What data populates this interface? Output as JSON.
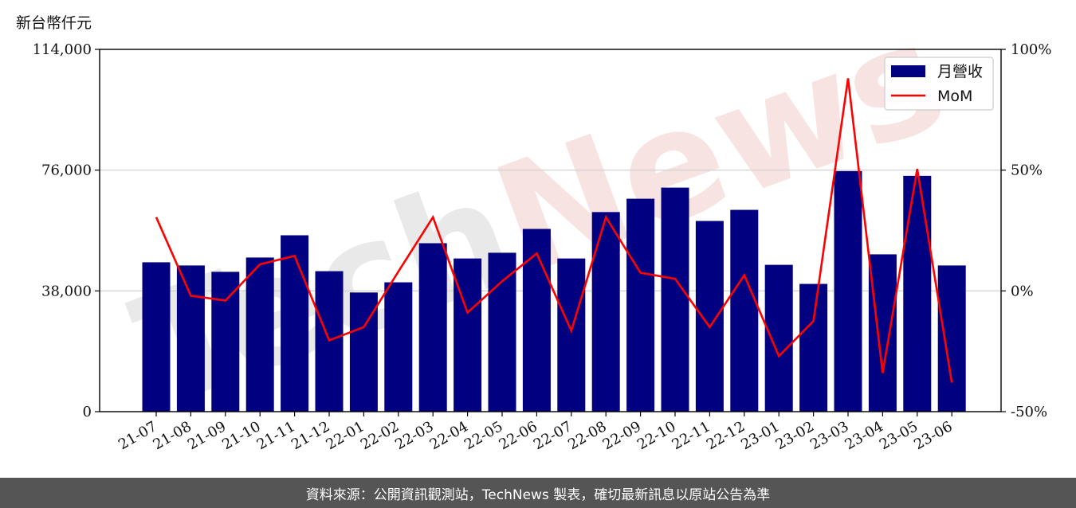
{
  "unit_label": "新台幣仟元",
  "watermark": "TechNews",
  "footer": "資料來源：公開資訊觀測站，TechNews 製表，確切最新訊息以原站公告為準",
  "colors": {
    "bar": "#000080",
    "line": "#ff0000",
    "footer_bg": "#555555"
  },
  "chart_data": {
    "type": "bar",
    "categories": [
      "21-07",
      "21-08",
      "21-09",
      "21-10",
      "21-11",
      "21-12",
      "22-01",
      "22-02",
      "22-03",
      "22-04",
      "22-05",
      "22-06",
      "22-07",
      "22-08",
      "22-09",
      "22-10",
      "22-11",
      "22-12",
      "23-01",
      "23-02",
      "23-03",
      "23-04",
      "23-05",
      "23-06"
    ],
    "series": [
      {
        "name": "月營收",
        "type": "bar",
        "axis": "left",
        "values": [
          47000,
          46000,
          44000,
          48500,
          55500,
          44200,
          37500,
          40700,
          53000,
          48200,
          50000,
          57500,
          48200,
          62800,
          67000,
          70500,
          60000,
          63500,
          46200,
          40200,
          75700,
          49500,
          74200,
          46000
        ]
      },
      {
        "name": "MoM",
        "type": "line",
        "axis": "right",
        "values": [
          30.5,
          -2,
          -4,
          11,
          14.5,
          -20.5,
          -15,
          8,
          30.5,
          -9,
          4,
          15.5,
          -16.5,
          30.5,
          7.5,
          5,
          -15,
          6.5,
          -27,
          -12.5,
          88,
          -34,
          50.5,
          -38
        ]
      }
    ],
    "y_left": {
      "min": 0,
      "max": 114000,
      "ticks": [
        0,
        38000,
        76000,
        114000
      ],
      "tick_labels": [
        "0",
        "38,000",
        "76,000",
        "114,000"
      ]
    },
    "y_right": {
      "min": -50,
      "max": 100,
      "ticks": [
        -50,
        0,
        50,
        100
      ],
      "tick_labels": [
        "-50%",
        "0%",
        "50%",
        "100%"
      ]
    },
    "grid": "horizontal",
    "legend": "top-right"
  }
}
